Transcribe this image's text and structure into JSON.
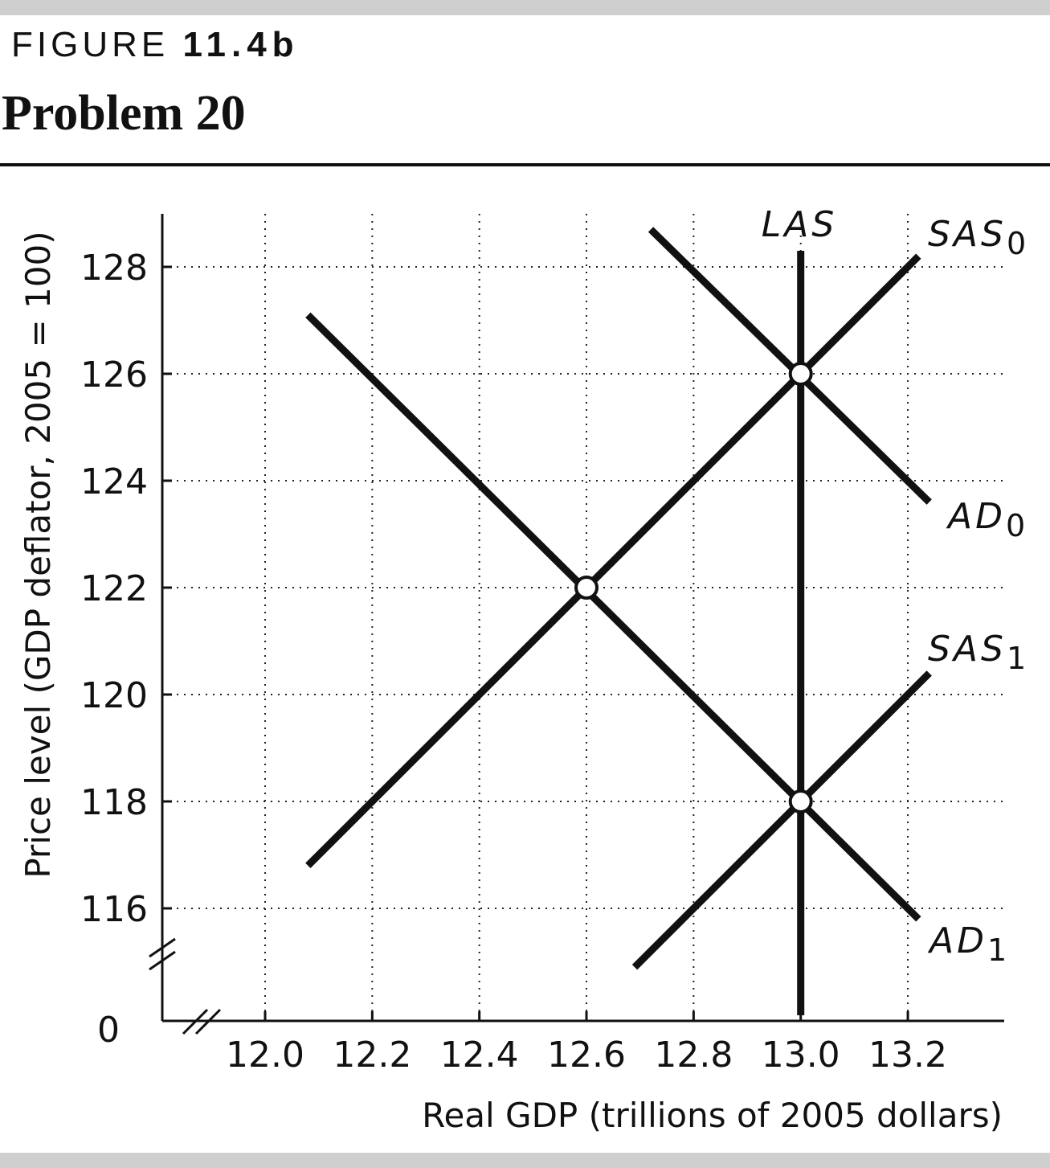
{
  "header": {
    "figure_word": "FIGURE",
    "figure_number": "11.4b",
    "problem": "Problem 20"
  },
  "chart_data": {
    "type": "line",
    "title": "",
    "xlabel": "Real GDP (trillions of 2005 dollars)",
    "ylabel": "Price level (GDP deflator, 2005 = 100)",
    "origin_label": "0",
    "x_ticks": [
      12.0,
      12.2,
      12.4,
      12.6,
      12.8,
      13.0,
      13.2
    ],
    "x_tick_labels": [
      "12.0",
      "12.2",
      "12.4",
      "12.6",
      "12.8",
      "13.0",
      "13.2"
    ],
    "y_ticks": [
      116,
      118,
      120,
      122,
      124,
      126,
      128
    ],
    "y_tick_labels": [
      "116",
      "118",
      "120",
      "122",
      "124",
      "126",
      "128"
    ],
    "xlim": [
      11.81,
      13.38
    ],
    "ylim": [
      114.0,
      129.0
    ],
    "axis_breaks": true,
    "grid": true,
    "series": [
      {
        "name": "LAS",
        "label_main": "LAS",
        "label_sub": "",
        "points": [
          [
            13.0,
            128.3
          ],
          [
            13.0,
            114.0
          ]
        ]
      },
      {
        "name": "SAS0",
        "label_main": "SAS",
        "label_sub": "0",
        "points": [
          [
            12.08,
            116.8
          ],
          [
            13.22,
            128.2
          ]
        ]
      },
      {
        "name": "SAS1",
        "label_main": "SAS",
        "label_sub": "1",
        "points": [
          [
            12.69,
            114.9
          ],
          [
            13.24,
            120.4
          ]
        ]
      },
      {
        "name": "AD0",
        "label_main": "AD",
        "label_sub": "0",
        "points": [
          [
            12.72,
            128.7
          ],
          [
            13.24,
            123.6
          ]
        ]
      },
      {
        "name": "AD1",
        "label_main": "AD",
        "label_sub": "1",
        "points": [
          [
            12.08,
            127.1
          ],
          [
            13.22,
            115.8
          ]
        ]
      }
    ],
    "equilibrium_points": [
      [
        13.0,
        126.0
      ],
      [
        12.6,
        122.0
      ],
      [
        13.0,
        118.0
      ]
    ]
  }
}
